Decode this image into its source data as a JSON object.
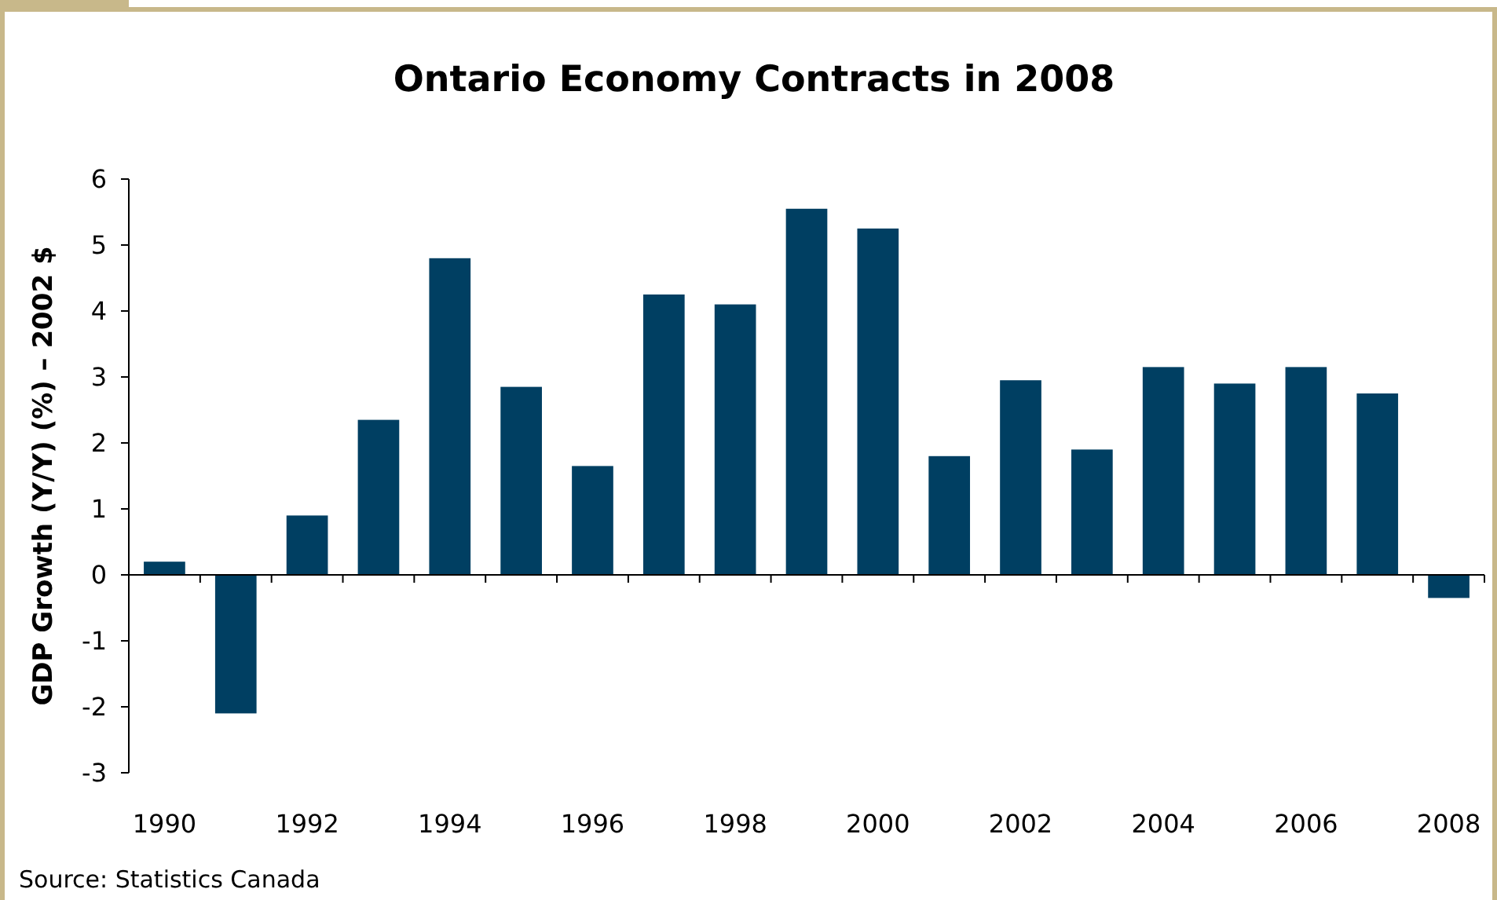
{
  "chart_data": {
    "type": "bar",
    "title": "Ontario Economy Contracts in 2008",
    "ylabel": "GDP Growth (Y/Y) (%) – 2002 $",
    "categories": [
      "1990",
      null,
      "1992",
      null,
      "1994",
      null,
      "1996",
      null,
      "1998",
      null,
      "2000",
      null,
      "2002",
      null,
      "2004",
      null,
      "2006",
      null,
      "2008"
    ],
    "values": [
      0.2,
      -2.1,
      0.9,
      2.35,
      4.8,
      2.85,
      1.65,
      4.25,
      4.1,
      5.55,
      5.25,
      1.8,
      2.95,
      1.9,
      3.15,
      2.9,
      3.15,
      2.75,
      -0.35
    ],
    "color": "#003f62",
    "ylim": [
      -3,
      6
    ],
    "yticks": [
      -3,
      -2,
      -1,
      0,
      1,
      2,
      3,
      4,
      5,
      6
    ],
    "annotations": [
      "Source: Statistics Canada"
    ]
  }
}
